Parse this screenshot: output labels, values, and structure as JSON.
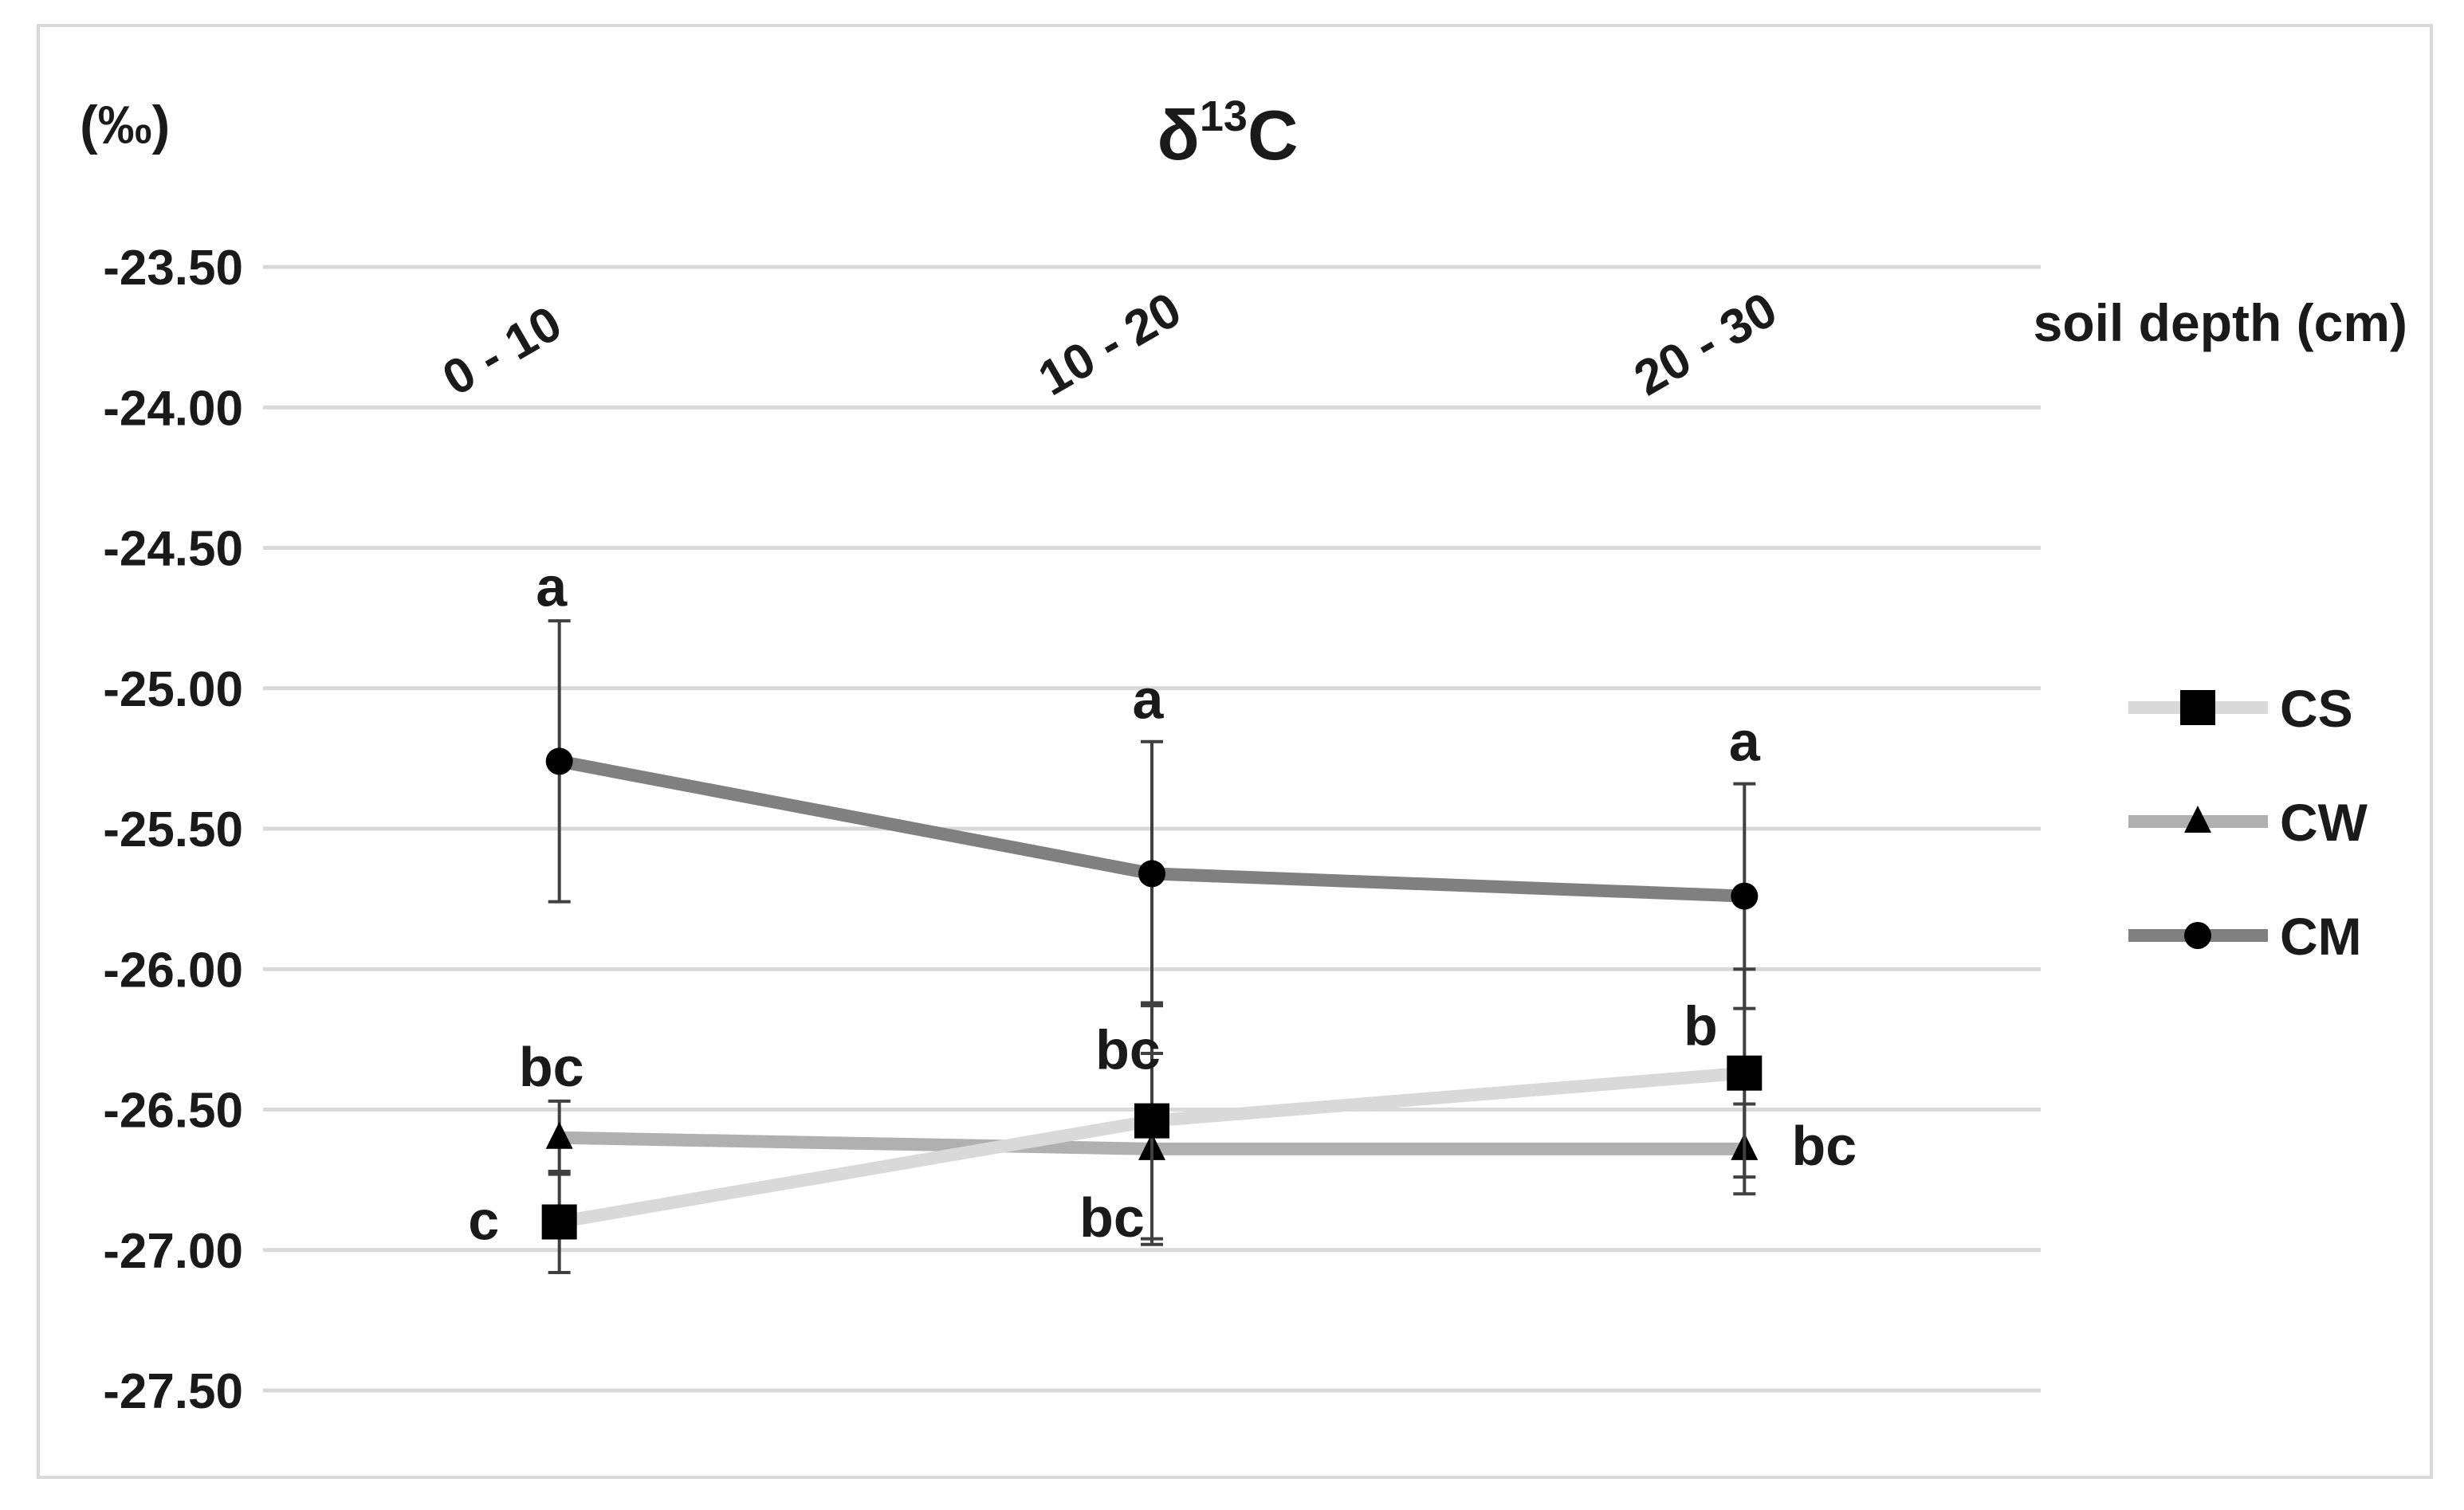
{
  "chart_data": {
    "type": "line",
    "title": "δ13C",
    "title_main": "δ",
    "title_sup": "13",
    "title_tail": "C",
    "ylabel": "(‰)",
    "xlabel": "soil depth (cm)",
    "categories": [
      "0 - 10",
      "10 - 20",
      "20 - 30"
    ],
    "ylim": [
      -27.5,
      -23.5
    ],
    "yticks": [
      -23.5,
      -24.0,
      -24.5,
      -25.0,
      -25.5,
      -26.0,
      -26.5,
      -27.0,
      -27.5
    ],
    "ytick_labels": [
      "-23.50",
      "-24.00",
      "-24.50",
      "-25.00",
      "-25.50",
      "-26.00",
      "-26.50",
      "-27.00",
      "-27.50"
    ],
    "axis": "reversed (more negative values lower), category labels at top",
    "grid": true,
    "legend_position": "right",
    "series": [
      {
        "name": "CS",
        "marker": "square",
        "color": "#d9d9d9",
        "values": [
          -26.9,
          -26.54,
          -26.37
        ],
        "errors": [
          0.18,
          0.42,
          0.37
        ],
        "labels": [
          "c",
          "bc",
          "b"
        ]
      },
      {
        "name": "CW",
        "marker": "triangle",
        "color": "#b0b0b0",
        "values": [
          -26.6,
          -26.64,
          -26.64
        ],
        "errors": [
          0.13,
          0.34,
          0.16
        ],
        "labels": [
          "bc",
          "bc",
          "bc"
        ]
      },
      {
        "name": "CM",
        "marker": "circle",
        "color": "#808080",
        "values": [
          -25.26,
          -25.66,
          -25.74
        ],
        "errors": [
          0.5,
          0.47,
          0.4
        ],
        "labels": [
          "a",
          "a",
          "a"
        ]
      }
    ]
  }
}
